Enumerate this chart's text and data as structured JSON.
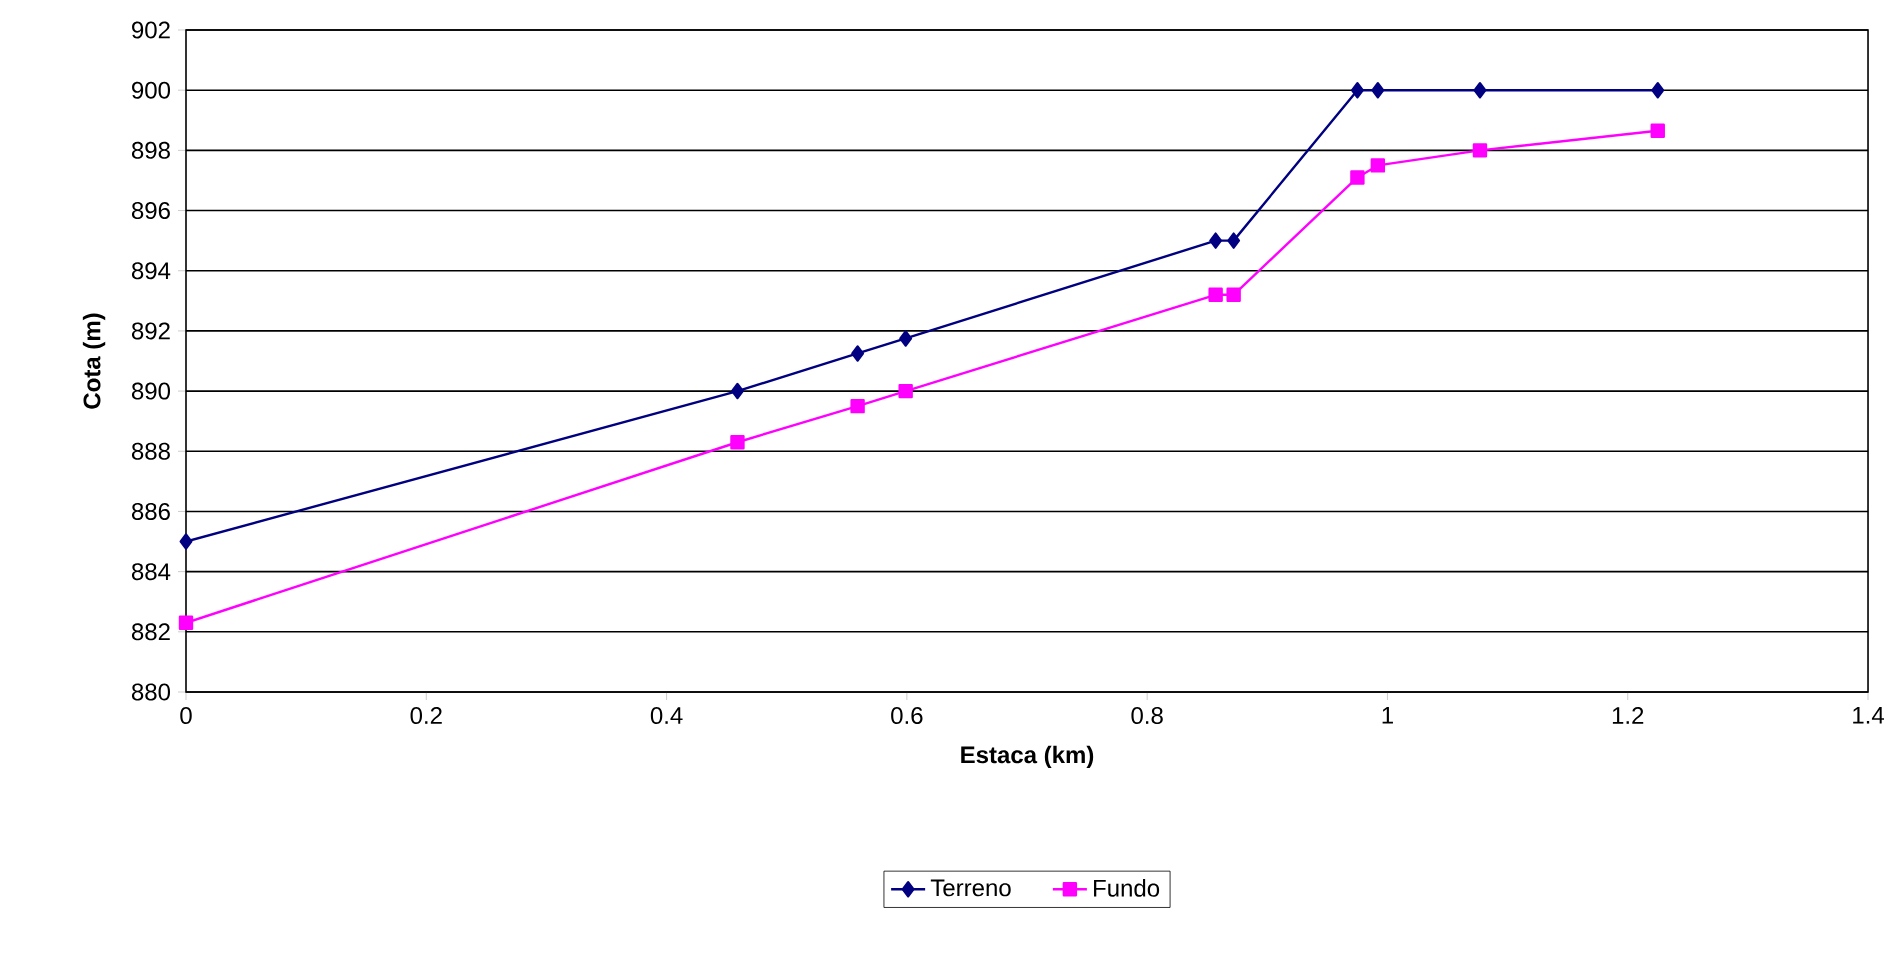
{
  "chart_data": {
    "type": "line",
    "xlabel": "Estaca (km)",
    "ylabel": "Cota (m)",
    "xlim": [
      0,
      1.4
    ],
    "xticks": [
      0,
      0.2,
      0.4,
      0.6,
      0.8,
      1,
      1.2,
      1.4
    ],
    "ylim": [
      880,
      902
    ],
    "yticks": [
      880,
      882,
      884,
      886,
      888,
      890,
      892,
      894,
      896,
      898,
      900,
      902
    ],
    "grid": "y",
    "legend": "bottom",
    "line_style": "solid",
    "series": [
      {
        "name": "Terreno",
        "color": "#000080",
        "marker": "diamond",
        "x": [
          0,
          0.459,
          0.559,
          0.599,
          0.857,
          0.872,
          0.975,
          0.992,
          1.077,
          1.225
        ],
        "values": [
          885,
          890,
          891.25,
          891.75,
          895,
          895,
          900,
          900,
          900,
          900
        ]
      },
      {
        "name": "Fundo",
        "color": "#ff00ff",
        "marker": "square",
        "x": [
          0,
          0.459,
          0.559,
          0.599,
          0.857,
          0.872,
          0.975,
          0.992,
          1.077,
          1.225
        ],
        "values": [
          882.3,
          888.3,
          889.5,
          890,
          893.2,
          893.2,
          897.1,
          897.5,
          898,
          898.65
        ]
      }
    ]
  }
}
